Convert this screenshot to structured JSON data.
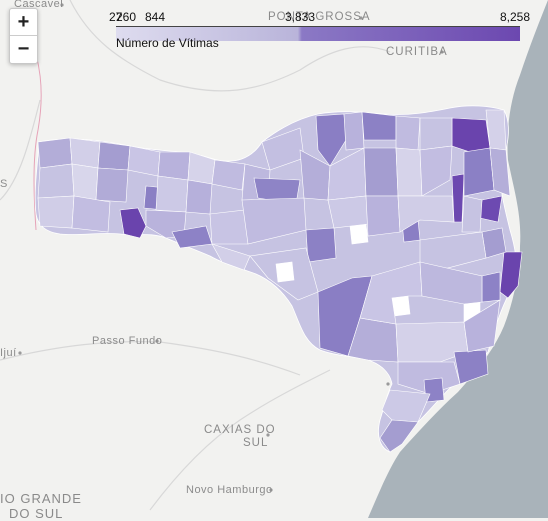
{
  "legend": {
    "title": "Número de Vítimas",
    "ticks": [
      "27",
      "260",
      "844",
      "3,833",
      "8,258"
    ],
    "colors": [
      "#dedcef",
      "#b9b4da",
      "#8b79c5",
      "#6c48b0"
    ]
  },
  "zoom": {
    "in_label": "+",
    "out_label": "−"
  },
  "cities": {
    "cascavel": "Cascavel",
    "ponta_grossa": "PONTA GROSSA",
    "curitiba": "CURITIBA",
    "passo_fundo": "Passo Fundo",
    "ijui": "Ijuí",
    "caxias_do_sul_1": "CAXIAS DO",
    "caxias_do_sul_2": "SUL",
    "novo_hamburgo": "Novo Hamburgo",
    "rio_grande_1": "IO GRANDE",
    "rio_grande_2": "DO SUL",
    "edge_s": "S"
  },
  "map_colors": {
    "land": "#f2f2f0",
    "ocean": "#a9b3ba",
    "region_base": "#c6c3e2",
    "border": "#ffffff"
  }
}
